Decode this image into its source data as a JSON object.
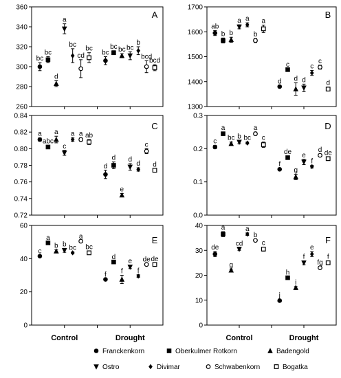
{
  "figure": {
    "x_groups": [
      "Control",
      "Drought"
    ],
    "legend": [
      {
        "name": "Franckenkorn",
        "marker": "circle-filled"
      },
      {
        "name": "Oberkulmer Rotkorn",
        "marker": "square-filled"
      },
      {
        "name": "Badengold",
        "marker": "triangle-up-filled"
      },
      {
        "name": "Ostro",
        "marker": "triangle-down-filled"
      },
      {
        "name": "Divimar",
        "marker": "diamond-filled"
      },
      {
        "name": "Schwabenkorn",
        "marker": "circle-open"
      },
      {
        "name": "Bogatka",
        "marker": "square-open"
      }
    ]
  },
  "chart_data": [
    {
      "type": "scatter",
      "panel": "A",
      "ylim": [
        260,
        360
      ],
      "yticks": [
        260,
        280,
        300,
        320,
        340,
        360
      ],
      "control": {
        "values": [
          300,
          307,
          283,
          338,
          311,
          298,
          309
        ],
        "errors": [
          4,
          3,
          3,
          5,
          7,
          9,
          5
        ],
        "letters": [
          "bc",
          "bc",
          "d",
          "a",
          "bc",
          "cd",
          "bc"
        ]
      },
      "drought": {
        "values": [
          306,
          314,
          311,
          311,
          316,
          300,
          299
        ],
        "errors": [
          4,
          2,
          2,
          4,
          4,
          6,
          3
        ],
        "letters": [
          "bc",
          "bc",
          "bc",
          "bc",
          "b",
          "bcd",
          "bcd"
        ]
      }
    },
    {
      "type": "scatter",
      "panel": "B",
      "ylim": [
        1300,
        1700
      ],
      "yticks": [
        1300,
        1400,
        1500,
        1600,
        1700
      ],
      "control": {
        "values": [
          1595,
          1565,
          1568,
          1620,
          1628,
          1565,
          1612
        ],
        "errors": [
          10,
          10,
          10,
          8,
          8,
          8,
          15
        ],
        "letters": [
          "ab",
          "b",
          "b",
          "a",
          "a",
          "b",
          "a"
        ]
      },
      "drought": {
        "values": [
          1380,
          1448,
          1370,
          1375,
          1435,
          1458,
          1370
        ],
        "errors": [
          4,
          4,
          25,
          15,
          10,
          8,
          8
        ],
        "letters": [
          "d",
          "c",
          "d",
          "d",
          "c",
          "c",
          "d"
        ]
      }
    },
    {
      "type": "scatter",
      "panel": "C",
      "ylim": [
        0.72,
        0.84
      ],
      "yticks": [
        0.72,
        0.74,
        0.76,
        0.78,
        0.8,
        0.82,
        0.84
      ],
      "control": {
        "values": [
          0.811,
          0.802,
          0.811,
          0.795,
          0.811,
          0.811,
          0.808
        ],
        "errors": [
          0.002,
          0.002,
          0.004,
          0.003,
          0.002,
          0.002,
          0.003
        ],
        "letters": [
          "a",
          "abc",
          "a",
          "c",
          "a",
          "a",
          "ab"
        ]
      },
      "drought": {
        "values": [
          0.769,
          0.78,
          0.744,
          0.778,
          0.775,
          0.797,
          0.774
        ],
        "errors": [
          0.005,
          0.004,
          0.002,
          0.004,
          0.002,
          0.003,
          0.002
        ],
        "letters": [
          "d",
          "d",
          "e",
          "d",
          "d",
          "c",
          "d"
        ]
      }
    },
    {
      "type": "scatter",
      "panel": "D",
      "ylim": [
        0.0,
        0.3
      ],
      "yticks": [
        0.0,
        0.1,
        0.2,
        0.3
      ],
      "control": {
        "values": [
          0.205,
          0.245,
          0.215,
          0.22,
          0.217,
          0.245,
          0.212
        ],
        "errors": [
          0.005,
          0.005,
          0.005,
          0.005,
          0.003,
          0.005,
          0.008
        ],
        "letters": [
          "c",
          "a",
          "bc",
          "b",
          "bc",
          "a",
          "c"
        ]
      },
      "drought": {
        "values": [
          0.138,
          0.173,
          0.115,
          0.16,
          0.146,
          0.18,
          0.17
        ],
        "errors": [
          0.003,
          0.005,
          0.008,
          0.008,
          0.004,
          0.004,
          0.005
        ],
        "letters": [
          "f",
          "de",
          "g",
          "e",
          "f",
          "d",
          "de"
        ]
      }
    },
    {
      "type": "scatter",
      "panel": "E",
      "ylim": [
        0,
        60
      ],
      "yticks": [
        0,
        20,
        40,
        60
      ],
      "control": {
        "values": [
          41.5,
          49.5,
          44.5,
          45,
          43.5,
          50.5,
          43.5
        ],
        "errors": [
          0.5,
          0.5,
          0.8,
          1.2,
          0.5,
          0.5,
          1.0
        ],
        "letters": [
          "c",
          "a",
          "b",
          "b",
          "bc",
          "a",
          "bc"
        ]
      },
      "drought": {
        "values": [
          27.5,
          38,
          27.5,
          35,
          29.5,
          36.5,
          36.5
        ],
        "errors": [
          0.5,
          0.5,
          2.5,
          1.0,
          0.8,
          0.5,
          0.8
        ],
        "letters": [
          "f",
          "d",
          "f",
          "e",
          "f",
          "de",
          "de"
        ]
      }
    },
    {
      "type": "scatter",
      "panel": "F",
      "ylim": [
        0,
        40
      ],
      "yticks": [
        0,
        10,
        20,
        30,
        40
      ],
      "control": {
        "values": [
          28.5,
          36.5,
          22,
          30.5,
          36.5,
          34,
          30.5
        ],
        "errors": [
          1.0,
          1.0,
          0.5,
          0.5,
          0.5,
          0.5,
          0.8
        ],
        "letters": [
          "de",
          "a",
          "g",
          "cd",
          "a",
          "b",
          "c"
        ]
      },
      "drought": {
        "values": [
          9.8,
          19,
          15,
          25,
          28.5,
          23,
          25
        ],
        "errors": [
          0.5,
          0.5,
          0.5,
          0.8,
          1.0,
          0.5,
          0.8
        ],
        "letters": [
          "j",
          "h",
          "i",
          "f",
          "e",
          "fg",
          "f"
        ]
      }
    }
  ]
}
